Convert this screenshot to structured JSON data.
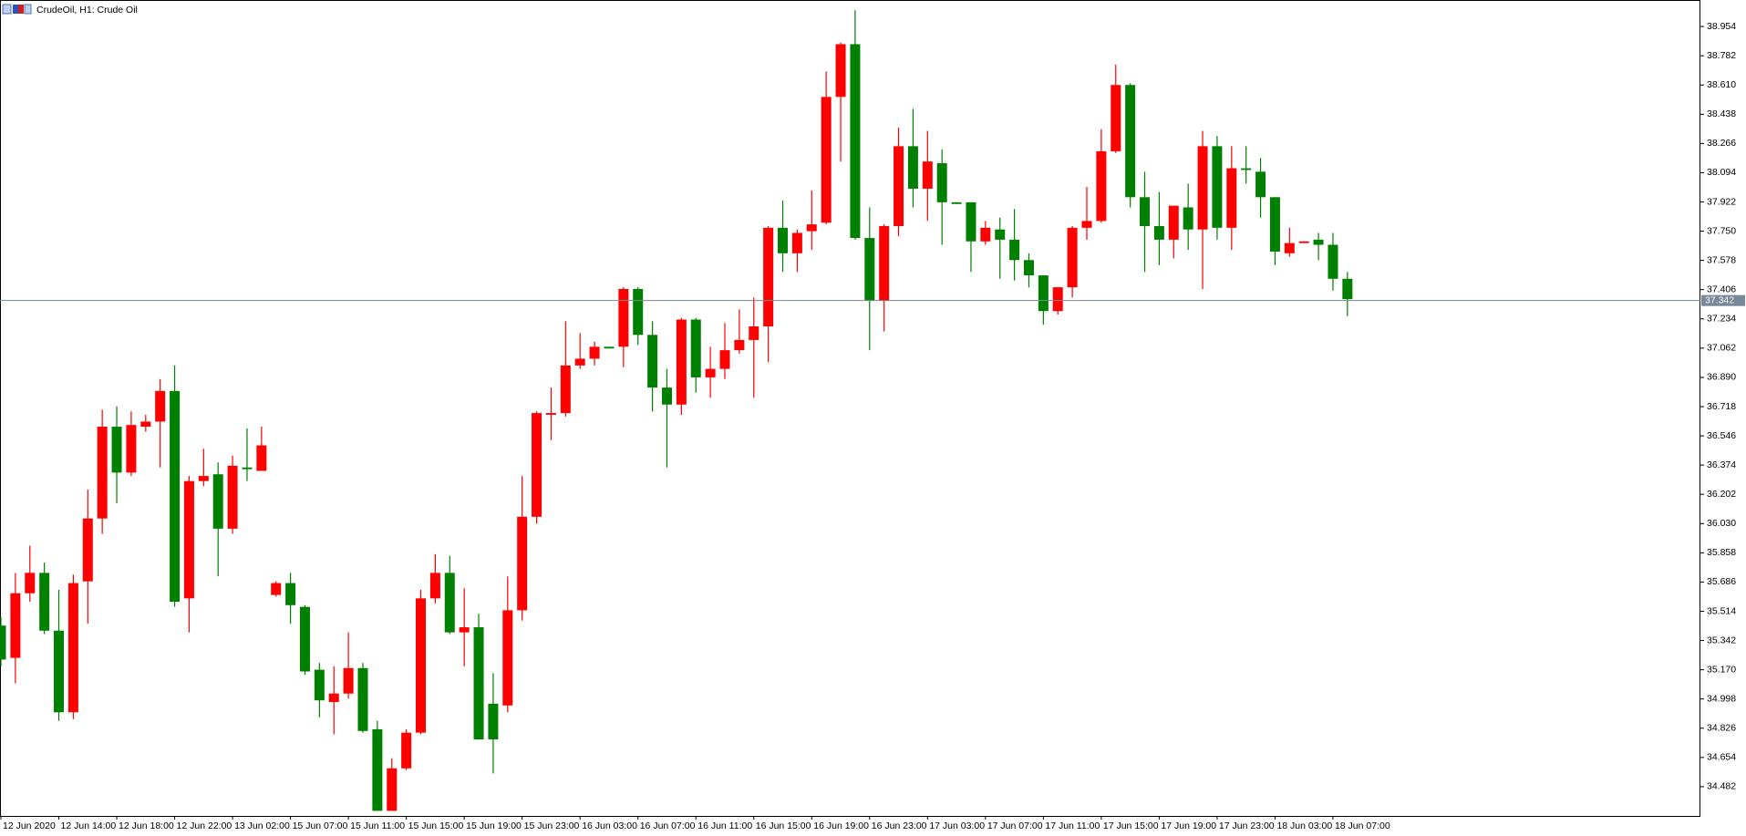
{
  "chart_data": {
    "type": "candlestick",
    "title": "CrudeOil, H1: Crude Oil",
    "up_color": "#ff0000",
    "down_color": "#008000",
    "price_line_color": "#778899",
    "current_price": 37.342,
    "ylim": [
      34.31,
      39.11
    ],
    "yticks": [
      38.954,
      38.782,
      {
        "value": 38.61,
        "label": "38.610"
      },
      38.438,
      38.266,
      38.094,
      37.922,
      {
        "value": 37.75,
        "label": "37.750"
      },
      37.578,
      37.406,
      37.234,
      37.062,
      {
        "value": 36.89,
        "label": "36.890"
      },
      36.718,
      36.546,
      36.374,
      36.202,
      {
        "value": 36.03,
        "label": "36.030"
      },
      35.858,
      35.686,
      35.514,
      35.342,
      {
        "value": 35.17,
        "label": "35.170"
      },
      34.998,
      34.826,
      34.654,
      34.482
    ],
    "categories": [
      "12 Jun 2020",
      null,
      null,
      null,
      "12 Jun 14:00",
      null,
      null,
      null,
      "12 Jun 18:00",
      null,
      null,
      null,
      "12 Jun 22:00",
      null,
      null,
      null,
      "13 Jun 02:00",
      null,
      null,
      null,
      "15 Jun 07:00",
      null,
      null,
      null,
      "15 Jun 11:00",
      null,
      null,
      null,
      "15 Jun 15:00",
      null,
      null,
      null,
      "15 Jun 19:00",
      null,
      null,
      null,
      "15 Jun 23:00",
      null,
      null,
      null,
      "16 Jun 03:00",
      null,
      null,
      null,
      "16 Jun 07:00",
      null,
      null,
      null,
      "16 Jun 11:00",
      null,
      null,
      null,
      "16 Jun 15:00",
      null,
      null,
      null,
      "16 Jun 19:00",
      null,
      null,
      null,
      "16 Jun 23:00",
      null,
      null,
      null,
      "17 Jun 03:00",
      null,
      null,
      null,
      "17 Jun 07:00",
      null,
      null,
      null,
      "17 Jun 11:00",
      null,
      null,
      null,
      "17 Jun 15:00",
      null,
      null,
      null,
      "17 Jun 19:00",
      null,
      null,
      null,
      "17 Jun 23:00",
      null,
      null,
      null,
      "18 Jun 03:00",
      null,
      null,
      null,
      "18 Jun 07:00",
      null
    ],
    "open": [
      35.43,
      35.24,
      35.62,
      35.74,
      35.4,
      34.92,
      35.69,
      36.06,
      36.6,
      36.33,
      36.6,
      36.63,
      36.81,
      35.59,
      36.28,
      36.32,
      36.0,
      36.36,
      36.34,
      35.61,
      35.68,
      35.54,
      35.17,
      34.98,
      35.03,
      35.18,
      34.82,
      34.34,
      34.59,
      34.8,
      35.59,
      35.74,
      35.39,
      35.42,
      34.97,
      34.96,
      35.52,
      36.07,
      36.67,
      36.68,
      36.96,
      37.0,
      37.07,
      37.07,
      37.41,
      37.14,
      36.83,
      36.73,
      37.23,
      36.89,
      36.94,
      37.05,
      37.11,
      37.19,
      37.77,
      37.62,
      37.75,
      37.8,
      38.54,
      38.85,
      37.71,
      37.34,
      37.78,
      38.25,
      38.0,
      38.15,
      37.92,
      37.92,
      37.69,
      37.76,
      37.7,
      37.58,
      37.49,
      37.28,
      37.42,
      37.77,
      37.81,
      38.22,
      38.61,
      37.95,
      37.78,
      37.7,
      37.89,
      37.76,
      38.25,
      37.77,
      38.12,
      38.1,
      37.95,
      37.62,
      37.68,
      37.7,
      37.67,
      37.47
    ],
    "high": [
      35.48,
      35.74,
      35.9,
      35.8,
      35.64,
      35.73,
      36.23,
      36.7,
      36.72,
      36.69,
      36.67,
      36.88,
      36.96,
      36.31,
      36.47,
      36.39,
      36.43,
      36.59,
      36.6,
      35.69,
      35.74,
      35.55,
      35.21,
      35.19,
      35.39,
      35.21,
      34.87,
      34.65,
      34.82,
      35.64,
      35.85,
      35.84,
      35.65,
      35.5,
      35.15,
      35.72,
      36.31,
      36.69,
      36.83,
      37.22,
      37.15,
      37.1,
      37.07,
      37.42,
      37.42,
      37.22,
      36.94,
      37.24,
      37.24,
      37.07,
      37.21,
      37.29,
      37.36,
      37.78,
      37.93,
      37.76,
      37.99,
      38.69,
      38.86,
      39.05,
      37.89,
      37.79,
      38.36,
      38.47,
      38.34,
      38.23,
      37.92,
      37.92,
      37.81,
      37.83,
      37.88,
      37.62,
      37.49,
      37.42,
      37.78,
      38.01,
      38.35,
      38.73,
      38.62,
      38.1,
      37.98,
      37.9,
      38.03,
      38.34,
      38.31,
      38.25,
      38.25,
      38.18,
      37.95,
      37.77,
      37.69,
      37.74,
      37.74,
      37.51
    ],
    "low": [
      35.19,
      35.09,
      35.57,
      35.38,
      34.87,
      34.88,
      35.44,
      35.97,
      36.15,
      36.31,
      36.57,
      36.36,
      35.54,
      35.39,
      36.25,
      35.72,
      35.97,
      36.28,
      36.34,
      35.6,
      35.44,
      35.14,
      34.89,
      34.79,
      35.0,
      34.8,
      34.34,
      34.34,
      34.58,
      34.79,
      35.56,
      35.38,
      35.19,
      34.76,
      34.56,
      34.92,
      35.46,
      36.03,
      36.52,
      36.66,
      36.94,
      36.96,
      37.06,
      36.95,
      37.08,
      36.69,
      36.36,
      36.67,
      36.8,
      36.77,
      36.88,
      37.03,
      36.77,
      36.98,
      37.51,
      37.51,
      37.64,
      37.79,
      38.16,
      37.7,
      37.05,
      37.16,
      37.72,
      37.89,
      37.81,
      37.67,
      37.91,
      37.51,
      37.67,
      37.47,
      37.46,
      37.42,
      37.2,
      37.26,
      37.36,
      37.7,
      37.8,
      38.21,
      37.89,
      37.51,
      37.55,
      37.59,
      37.64,
      37.41,
      37.7,
      37.64,
      38.03,
      37.83,
      37.55,
      37.6,
      37.68,
      37.58,
      37.4,
      37.25
    ],
    "close": [
      35.23,
      35.62,
      35.74,
      35.4,
      34.92,
      35.68,
      36.06,
      36.6,
      36.33,
      36.61,
      36.63,
      36.81,
      35.57,
      36.28,
      36.31,
      36.0,
      36.37,
      36.35,
      36.49,
      35.68,
      35.55,
      35.16,
      34.99,
      35.03,
      35.18,
      34.81,
      34.34,
      34.59,
      34.8,
      35.59,
      35.74,
      35.39,
      35.42,
      34.76,
      34.76,
      35.52,
      36.07,
      36.68,
      36.68,
      36.96,
      37.0,
      37.07,
      37.06,
      37.41,
      37.14,
      36.83,
      36.73,
      37.23,
      36.89,
      36.94,
      37.05,
      37.11,
      37.19,
      37.77,
      37.62,
      37.74,
      37.79,
      38.54,
      38.85,
      37.71,
      37.34,
      37.78,
      38.25,
      38.0,
      38.16,
      37.92,
      37.91,
      37.69,
      37.77,
      37.7,
      37.58,
      37.49,
      37.28,
      37.42,
      37.77,
      37.81,
      38.22,
      38.61,
      37.95,
      37.78,
      37.7,
      37.9,
      37.76,
      38.25,
      37.77,
      38.12,
      38.11,
      37.95,
      37.63,
      37.68,
      37.69,
      37.67,
      37.47,
      37.35
    ]
  }
}
